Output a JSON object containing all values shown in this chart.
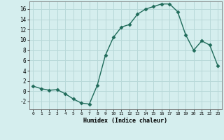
{
  "x": [
    0,
    1,
    2,
    3,
    4,
    5,
    6,
    7,
    8,
    9,
    10,
    11,
    12,
    13,
    14,
    15,
    16,
    17,
    18,
    19,
    20,
    21,
    22,
    23
  ],
  "y": [
    1,
    0.5,
    0.2,
    0.3,
    -0.5,
    -1.5,
    -2.3,
    -2.5,
    1.2,
    7,
    10.5,
    12.5,
    13,
    15,
    16,
    16.5,
    17,
    17,
    15.5,
    11,
    8,
    9.8,
    9,
    5
  ],
  "line_color": "#1f6b5a",
  "marker_color": "#1f6b5a",
  "bg_color": "#d5eeee",
  "grid_color": "#b8d8d8",
  "xlabel": "Humidex (Indice chaleur)",
  "xlim": [
    -0.5,
    23.5
  ],
  "ylim": [
    -3.5,
    17.5
  ],
  "yticks": [
    -2,
    0,
    2,
    4,
    6,
    8,
    10,
    12,
    14,
    16
  ],
  "xticks": [
    0,
    1,
    2,
    3,
    4,
    5,
    6,
    7,
    8,
    9,
    10,
    11,
    12,
    13,
    14,
    15,
    16,
    17,
    18,
    19,
    20,
    21,
    22,
    23
  ]
}
